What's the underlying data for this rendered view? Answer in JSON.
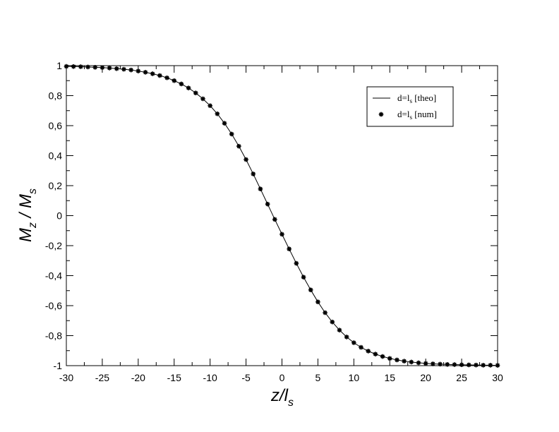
{
  "chart_data": {
    "type": "line",
    "xlabel": {
      "main": "z/l",
      "sub": "s"
    },
    "ylabel": {
      "num_main": "M",
      "num_sub": "z",
      "sep": " / ",
      "den_main": "M",
      "den_sub": "s"
    },
    "xlim": [
      -30,
      30
    ],
    "ylim": [
      -1,
      1
    ],
    "x_ticks": [
      -30,
      -25,
      -20,
      -15,
      -10,
      -5,
      0,
      5,
      10,
      15,
      20,
      25,
      30
    ],
    "x_tick_labels": [
      "-30",
      "-25",
      "-20",
      "-15",
      "-10",
      "-5",
      "0",
      "5",
      "10",
      "15",
      "20",
      "25",
      "30"
    ],
    "y_ticks": [
      -1,
      -0.8,
      -0.6,
      -0.4,
      -0.2,
      0,
      0.2,
      0.4,
      0.6,
      0.8,
      1
    ],
    "y_tick_labels": [
      "-1",
      "-0,8",
      "-0,6",
      "-0,4",
      "-0,2",
      "0",
      "0,2",
      "0,4",
      "0,6",
      "0,8",
      "1"
    ],
    "grid": false,
    "legend": {
      "placement": "top-right",
      "entries": [
        {
          "main": "d=l",
          "sub": "s",
          "rest": " [theo]",
          "marker": "line"
        },
        {
          "main": "d=l",
          "sub": "s",
          "rest": " [num]",
          "marker": "star"
        }
      ]
    },
    "series": [
      {
        "style": "line",
        "x": [
          -30,
          -29,
          -28,
          -27,
          -26,
          -25,
          -24,
          -23,
          -22,
          -21,
          -20,
          -19,
          -18,
          -17,
          -16,
          -15,
          -14,
          -13,
          -12,
          -11,
          -10,
          -9,
          -8,
          -7,
          -6,
          -5,
          -4,
          -3,
          -2,
          -1,
          0,
          1,
          2,
          3,
          4,
          5,
          6,
          7,
          8,
          9,
          10,
          11,
          12,
          13,
          14,
          15,
          16,
          17,
          18,
          19,
          20,
          21,
          22,
          23,
          24,
          25,
          26,
          27,
          28,
          29,
          30
        ],
        "y": [
          0.995,
          0.994,
          0.993,
          0.991,
          0.989,
          0.987,
          0.984,
          0.98,
          0.976,
          0.971,
          0.964,
          0.956,
          0.946,
          0.934,
          0.919,
          0.9,
          0.878,
          0.851,
          0.818,
          0.779,
          0.733,
          0.679,
          0.616,
          0.544,
          0.463,
          0.374,
          0.278,
          0.178,
          0.077,
          -0.025,
          -0.124,
          -0.222,
          -0.318,
          -0.41,
          -0.495,
          -0.575,
          -0.647,
          -0.709,
          -0.763,
          -0.809,
          -0.847,
          -0.878,
          -0.903,
          -0.923,
          -0.939,
          -0.952,
          -0.962,
          -0.97,
          -0.976,
          -0.981,
          -0.985,
          -0.988,
          -0.99,
          -0.992,
          -0.993,
          -0.994,
          -0.995,
          -0.996,
          -0.997,
          -0.997,
          -0.998
        ]
      },
      {
        "style": "scatter",
        "x": [
          -30,
          -29,
          -28,
          -27,
          -26,
          -25,
          -24,
          -23,
          -22,
          -21,
          -20,
          -19,
          -18,
          -17,
          -16,
          -15,
          -14,
          -13,
          -12,
          -11,
          -10,
          -9,
          -8,
          -7,
          -6,
          -5,
          -4,
          -3,
          -2,
          -1,
          0,
          1,
          2,
          3,
          4,
          5,
          6,
          7,
          8,
          9,
          10,
          11,
          12,
          13,
          14,
          15,
          16,
          17,
          18,
          19,
          20,
          21,
          22,
          23,
          24,
          25,
          26,
          27,
          28,
          29,
          30
        ],
        "y": [
          0.995,
          0.994,
          0.993,
          0.991,
          0.989,
          0.987,
          0.984,
          0.98,
          0.976,
          0.971,
          0.964,
          0.956,
          0.946,
          0.934,
          0.919,
          0.9,
          0.878,
          0.851,
          0.818,
          0.779,
          0.733,
          0.679,
          0.616,
          0.544,
          0.463,
          0.374,
          0.278,
          0.178,
          0.077,
          -0.025,
          -0.124,
          -0.222,
          -0.318,
          -0.41,
          -0.495,
          -0.575,
          -0.647,
          -0.709,
          -0.763,
          -0.809,
          -0.847,
          -0.878,
          -0.903,
          -0.923,
          -0.939,
          -0.952,
          -0.962,
          -0.97,
          -0.976,
          -0.981,
          -0.985,
          -0.988,
          -0.99,
          -0.992,
          -0.993,
          -0.994,
          -0.995,
          -0.996,
          -0.997,
          -0.997,
          -0.998
        ]
      }
    ]
  }
}
